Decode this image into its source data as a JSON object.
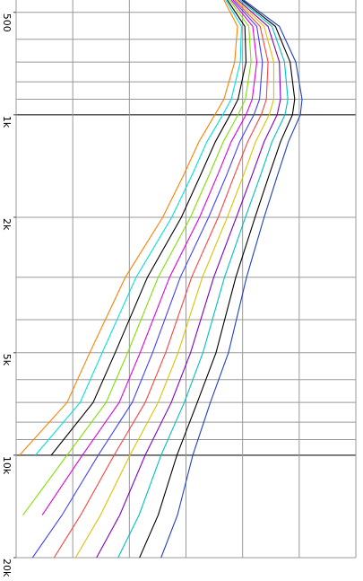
{
  "chart_data": {
    "type": "line",
    "rotated": true,
    "x": [
      460,
      550,
      700,
      900,
      1000,
      1200,
      1500,
      2000,
      3000,
      5000,
      7000,
      10000,
      15000,
      20000
    ],
    "xlim": [
      460,
      20000
    ],
    "xscale": "log",
    "xticks": [
      {
        "value": 500,
        "label": "500"
      },
      {
        "value": 1000,
        "label": "1k"
      },
      {
        "value": 2000,
        "label": "2k"
      },
      {
        "value": 5000,
        "label": "5k"
      },
      {
        "value": 10000,
        "label": "10k"
      },
      {
        "value": 20000,
        "label": "20k"
      }
    ],
    "xgrid": [
      500,
      600,
      700,
      800,
      900,
      1000,
      2000,
      3000,
      4000,
      5000,
      6000,
      7000,
      8000,
      9000,
      10000,
      20000
    ],
    "ylim": [
      0,
      6
    ],
    "yticks": [
      0,
      1,
      2,
      3,
      4,
      5,
      6
    ],
    "grid": true,
    "series": [
      {
        "color": "#ff8000",
        "values": [
          3.67,
          3.91,
          3.86,
          3.67,
          3.51,
          3.23,
          2.96,
          2.59,
          1.93,
          1.3,
          0.9,
          0.06,
          null,
          null
        ]
      },
      {
        "color": "#00e0e0",
        "values": [
          3.7,
          3.98,
          3.96,
          3.8,
          3.65,
          3.37,
          3.11,
          2.75,
          2.12,
          1.52,
          1.13,
          0.34,
          null,
          null
        ]
      },
      {
        "color": "#000000",
        "values": [
          3.73,
          4.04,
          4.06,
          3.92,
          3.78,
          3.52,
          3.26,
          2.92,
          2.32,
          1.75,
          1.36,
          0.62,
          null,
          null
        ]
      },
      {
        "color": "#80e000",
        "values": [
          3.77,
          4.11,
          4.15,
          4.05,
          3.92,
          3.66,
          3.41,
          3.08,
          2.51,
          1.97,
          1.59,
          0.9,
          0.12,
          null
        ]
      },
      {
        "color": "#e000e0",
        "values": [
          3.8,
          4.18,
          4.25,
          4.17,
          4.06,
          3.8,
          3.56,
          3.24,
          2.71,
          2.19,
          1.82,
          1.17,
          0.46,
          null
        ]
      },
      {
        "color": "#4040ff",
        "values": [
          3.83,
          4.25,
          4.35,
          4.3,
          4.2,
          3.95,
          3.72,
          3.4,
          2.9,
          2.41,
          2.05,
          1.45,
          0.81,
          0.29
        ]
      },
      {
        "color": "#ff4040",
        "values": [
          3.86,
          4.31,
          4.45,
          4.42,
          4.33,
          4.09,
          3.86,
          3.57,
          3.1,
          2.64,
          2.28,
          1.73,
          1.14,
          0.67
        ]
      },
      {
        "color": "#e0c000",
        "values": [
          3.89,
          4.38,
          4.55,
          4.55,
          4.47,
          4.23,
          4.02,
          3.73,
          3.29,
          2.86,
          2.51,
          2.01,
          1.49,
          1.05
        ]
      },
      {
        "color": "#8000c0",
        "values": [
          3.92,
          4.45,
          4.65,
          4.67,
          4.61,
          4.38,
          4.17,
          3.89,
          3.49,
          3.08,
          2.74,
          2.28,
          1.83,
          1.42
        ]
      },
      {
        "color": "#00c0c0",
        "values": [
          3.96,
          4.52,
          4.74,
          4.8,
          4.75,
          4.52,
          4.32,
          4.05,
          3.68,
          3.3,
          2.97,
          2.56,
          2.17,
          1.8
        ]
      },
      {
        "color": "#000000",
        "values": [
          3.99,
          4.58,
          4.84,
          4.92,
          4.88,
          4.67,
          4.47,
          4.22,
          3.88,
          3.53,
          3.2,
          2.84,
          2.51,
          2.18
        ]
      },
      {
        "color": "#2040c0",
        "values": [
          4.02,
          4.65,
          4.94,
          5.05,
          5.02,
          4.81,
          4.62,
          4.38,
          4.07,
          3.75,
          3.43,
          3.12,
          2.85,
          2.56
        ]
      }
    ]
  }
}
